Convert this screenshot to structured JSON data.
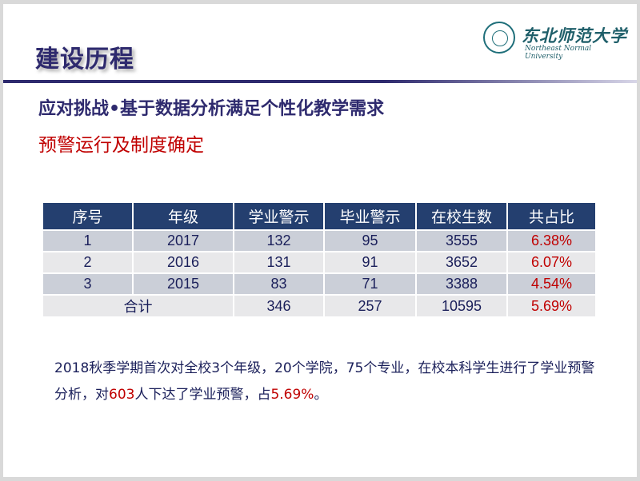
{
  "title": "建设历程",
  "logo": {
    "cn": "东北师范大学",
    "en": "Northeast Normal University"
  },
  "subtitle": "应对挑战•基于数据分析满足个性化教学需求",
  "subtitle2": "预警运行及制度确定",
  "table": {
    "headers": [
      "序号",
      "年级",
      "学业警示",
      "毕业警示",
      "在校生数",
      "共占比"
    ],
    "rows": [
      [
        "1",
        "2017",
        "132",
        "95",
        "3555",
        "6.38%"
      ],
      [
        "2",
        "2016",
        "131",
        "91",
        "3652",
        "6.07%"
      ],
      [
        "3",
        "2015",
        "83",
        "71",
        "3388",
        "4.54%"
      ]
    ],
    "total": [
      "合计",
      "346",
      "257",
      "10595",
      "5.69%"
    ]
  },
  "paragraph": {
    "p1": "2018秋季学期首次对全校3个年级，20个学院，75个专业，在校本科学生进行了学业预警分析，对",
    "n1": "603",
    "p2": "人下达了学业预警，占",
    "n2": "5.69%",
    "p3": "。"
  },
  "colors": {
    "title": "#2e2a6e",
    "highlight": "#c00000",
    "header_bg": "#243f6f"
  }
}
